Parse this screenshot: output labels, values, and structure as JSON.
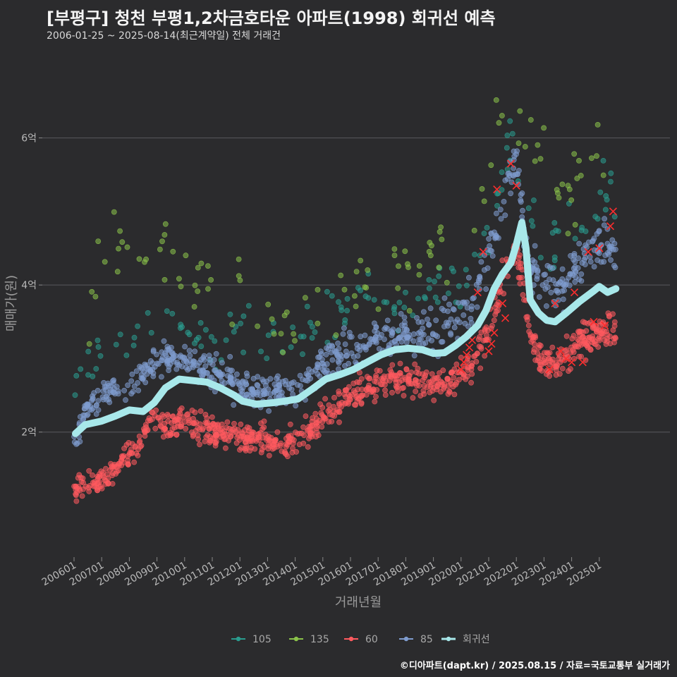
{
  "chart_data": {
    "type": "scatter",
    "title": "[부평구] 청천 부평1,2차금호타운 아파트(1998) 회귀선 예측",
    "subtitle": "2006-01-25 ~ 2025-08-14(최근계약일) 전체 거래건",
    "xlabel": "거래년월",
    "ylabel": "매매가(원)",
    "caption": "©디아파트(dapt.kr) / 2025.08.15 / 자료=국토교통부 실거래가",
    "x_range": [
      2006.0,
      2025.75
    ],
    "ylim": [
      0.3,
      7.3
    ],
    "y_ticks": [
      {
        "value": 2,
        "label": "2억"
      },
      {
        "value": 4,
        "label": "4억"
      },
      {
        "value": 6,
        "label": "6억"
      }
    ],
    "x_ticks": [
      "200601",
      "200701",
      "200801",
      "200901",
      "201001",
      "201101",
      "201201",
      "201301",
      "201401",
      "201501",
      "201601",
      "201701",
      "201801",
      "201901",
      "202001",
      "202101",
      "202201",
      "202301",
      "202401",
      "202501"
    ],
    "grid": true,
    "legend_position": "bottom",
    "colors": {
      "105": "#2a9d8f",
      "135": "#8bc34a",
      "60": "#ff5a5f",
      "85": "#7f9ccf",
      "regression": "#a8e8ea",
      "cross": "#ff2e2e"
    },
    "series": [
      {
        "name": "105",
        "trend": [
          [
            2006.0,
            2.6
          ],
          [
            2007.0,
            3.1
          ],
          [
            2008.0,
            3.3
          ],
          [
            2009.0,
            3.45
          ],
          [
            2010.0,
            3.3
          ],
          [
            2011.0,
            3.25
          ],
          [
            2012.0,
            3.3
          ],
          [
            2013.0,
            3.3
          ],
          [
            2014.0,
            3.2
          ],
          [
            2015.0,
            3.4
          ],
          [
            2016.0,
            3.7
          ],
          [
            2017.0,
            3.85
          ],
          [
            2018.0,
            3.8
          ],
          [
            2019.0,
            3.85
          ],
          [
            2020.0,
            4.1
          ],
          [
            2020.7,
            4.6
          ],
          [
            2021.3,
            5.3
          ],
          [
            2021.9,
            6.1
          ],
          [
            2022.4,
            5.2
          ],
          [
            2023.0,
            4.6
          ],
          [
            2023.6,
            4.6
          ],
          [
            2024.2,
            4.8
          ],
          [
            2025.0,
            5.1
          ],
          [
            2025.6,
            5.2
          ]
        ],
        "spread": 0.25,
        "count": 150
      },
      {
        "name": "135",
        "trend": [
          [
            2006.5,
            3.4
          ],
          [
            2007.0,
            4.8
          ],
          [
            2008.0,
            4.6
          ],
          [
            2009.0,
            4.4
          ],
          [
            2010.0,
            4.2
          ],
          [
            2011.0,
            4.0
          ],
          [
            2012.0,
            3.8
          ],
          [
            2013.0,
            3.6
          ],
          [
            2014.0,
            3.4
          ],
          [
            2015.0,
            3.7
          ],
          [
            2016.0,
            3.95
          ],
          [
            2017.0,
            4.1
          ],
          [
            2018.0,
            4.3
          ],
          [
            2019.0,
            4.35
          ],
          [
            2020.0,
            4.4
          ],
          [
            2021.0,
            5.8
          ],
          [
            2021.6,
            6.8
          ],
          [
            2022.2,
            6.3
          ],
          [
            2023.5,
            5.4
          ],
          [
            2024.5,
            5.6
          ],
          [
            2025.5,
            5.3
          ]
        ],
        "spread": 0.35,
        "count": 110
      },
      {
        "name": "60",
        "trend": [
          [
            2006.0,
            1.22
          ],
          [
            2006.8,
            1.3
          ],
          [
            2007.5,
            1.5
          ],
          [
            2008.3,
            1.8
          ],
          [
            2008.8,
            2.2
          ],
          [
            2009.3,
            2.05
          ],
          [
            2010.0,
            2.15
          ],
          [
            2011.0,
            2.0
          ],
          [
            2012.0,
            1.95
          ],
          [
            2012.8,
            1.9
          ],
          [
            2013.5,
            1.82
          ],
          [
            2014.2,
            1.9
          ],
          [
            2015.0,
            2.2
          ],
          [
            2016.0,
            2.5
          ],
          [
            2017.0,
            2.65
          ],
          [
            2018.0,
            2.72
          ],
          [
            2019.0,
            2.65
          ],
          [
            2019.8,
            2.7
          ],
          [
            2020.5,
            3.0
          ],
          [
            2021.0,
            3.4
          ],
          [
            2021.6,
            4.2
          ],
          [
            2022.0,
            4.5
          ],
          [
            2022.4,
            3.6
          ],
          [
            2022.8,
            3.0
          ],
          [
            2023.5,
            2.95
          ],
          [
            2024.5,
            3.3
          ],
          [
            2025.6,
            3.4
          ]
        ],
        "spread": 0.13,
        "count": 900
      },
      {
        "name": "85",
        "trend": [
          [
            2006.0,
            1.95
          ],
          [
            2006.5,
            2.3
          ],
          [
            2007.3,
            2.55
          ],
          [
            2008.0,
            2.65
          ],
          [
            2008.8,
            2.9
          ],
          [
            2009.5,
            3.0
          ],
          [
            2010.0,
            2.95
          ],
          [
            2011.0,
            2.85
          ],
          [
            2012.0,
            2.6
          ],
          [
            2013.0,
            2.55
          ],
          [
            2014.0,
            2.6
          ],
          [
            2015.0,
            2.9
          ],
          [
            2016.0,
            3.1
          ],
          [
            2017.0,
            3.3
          ],
          [
            2018.0,
            3.35
          ],
          [
            2019.0,
            3.35
          ],
          [
            2019.8,
            3.5
          ],
          [
            2020.5,
            3.8
          ],
          [
            2021.0,
            4.4
          ],
          [
            2021.6,
            5.2
          ],
          [
            2022.0,
            5.8
          ],
          [
            2022.4,
            4.3
          ],
          [
            2023.0,
            4.0
          ],
          [
            2023.6,
            3.95
          ],
          [
            2024.3,
            4.3
          ],
          [
            2025.0,
            4.6
          ],
          [
            2025.6,
            4.4
          ]
        ],
        "spread": 0.16,
        "count": 750
      }
    ],
    "regression": {
      "name": "회귀선",
      "points": [
        [
          2006.05,
          1.98
        ],
        [
          2006.4,
          2.1
        ],
        [
          2007.0,
          2.15
        ],
        [
          2007.5,
          2.22
        ],
        [
          2008.0,
          2.3
        ],
        [
          2008.5,
          2.28
        ],
        [
          2008.9,
          2.4
        ],
        [
          2009.3,
          2.6
        ],
        [
          2009.8,
          2.72
        ],
        [
          2010.3,
          2.7
        ],
        [
          2010.8,
          2.68
        ],
        [
          2011.3,
          2.6
        ],
        [
          2011.8,
          2.5
        ],
        [
          2012.1,
          2.42
        ],
        [
          2012.6,
          2.38
        ],
        [
          2013.2,
          2.4
        ],
        [
          2013.6,
          2.42
        ],
        [
          2014.1,
          2.45
        ],
        [
          2014.6,
          2.58
        ],
        [
          2015.1,
          2.72
        ],
        [
          2015.6,
          2.78
        ],
        [
          2016.1,
          2.85
        ],
        [
          2016.6,
          2.95
        ],
        [
          2017.1,
          3.05
        ],
        [
          2017.6,
          3.12
        ],
        [
          2018.1,
          3.14
        ],
        [
          2018.6,
          3.12
        ],
        [
          2019.0,
          3.07
        ],
        [
          2019.4,
          3.08
        ],
        [
          2019.8,
          3.18
        ],
        [
          2020.2,
          3.3
        ],
        [
          2020.6,
          3.45
        ],
        [
          2020.9,
          3.65
        ],
        [
          2021.2,
          3.95
        ],
        [
          2021.5,
          4.15
        ],
        [
          2021.8,
          4.3
        ],
        [
          2022.0,
          4.55
        ],
        [
          2022.2,
          4.85
        ],
        [
          2022.35,
          4.5
        ],
        [
          2022.5,
          3.8
        ],
        [
          2022.8,
          3.62
        ],
        [
          2023.1,
          3.52
        ],
        [
          2023.4,
          3.5
        ],
        [
          2023.8,
          3.62
        ],
        [
          2024.3,
          3.78
        ],
        [
          2024.8,
          3.92
        ],
        [
          2025.0,
          3.98
        ],
        [
          2025.3,
          3.9
        ],
        [
          2025.6,
          3.95
        ]
      ]
    },
    "highlight_crosses": [
      [
        2020.0,
        2.85
      ],
      [
        2020.1,
        2.95
      ],
      [
        2020.2,
        3.05
      ],
      [
        2020.3,
        3.15
      ],
      [
        2020.4,
        3.25
      ],
      [
        2020.6,
        3.9
      ],
      [
        2020.8,
        4.45
      ],
      [
        2021.0,
        3.1
      ],
      [
        2021.1,
        3.2
      ],
      [
        2021.2,
        3.35
      ],
      [
        2021.3,
        5.3
      ],
      [
        2021.5,
        3.75
      ],
      [
        2021.6,
        3.55
      ],
      [
        2021.8,
        5.65
      ],
      [
        2022.0,
        5.35
      ],
      [
        2023.2,
        2.85
      ],
      [
        2023.4,
        3.75
      ],
      [
        2023.6,
        3.1
      ],
      [
        2023.8,
        3.0
      ],
      [
        2024.0,
        2.95
      ],
      [
        2024.1,
        3.9
      ],
      [
        2024.4,
        2.95
      ],
      [
        2024.6,
        4.45
      ],
      [
        2024.8,
        3.5
      ],
      [
        2025.0,
        4.5
      ],
      [
        2025.2,
        3.45
      ],
      [
        2025.4,
        4.8
      ],
      [
        2025.5,
        5.0
      ]
    ]
  }
}
